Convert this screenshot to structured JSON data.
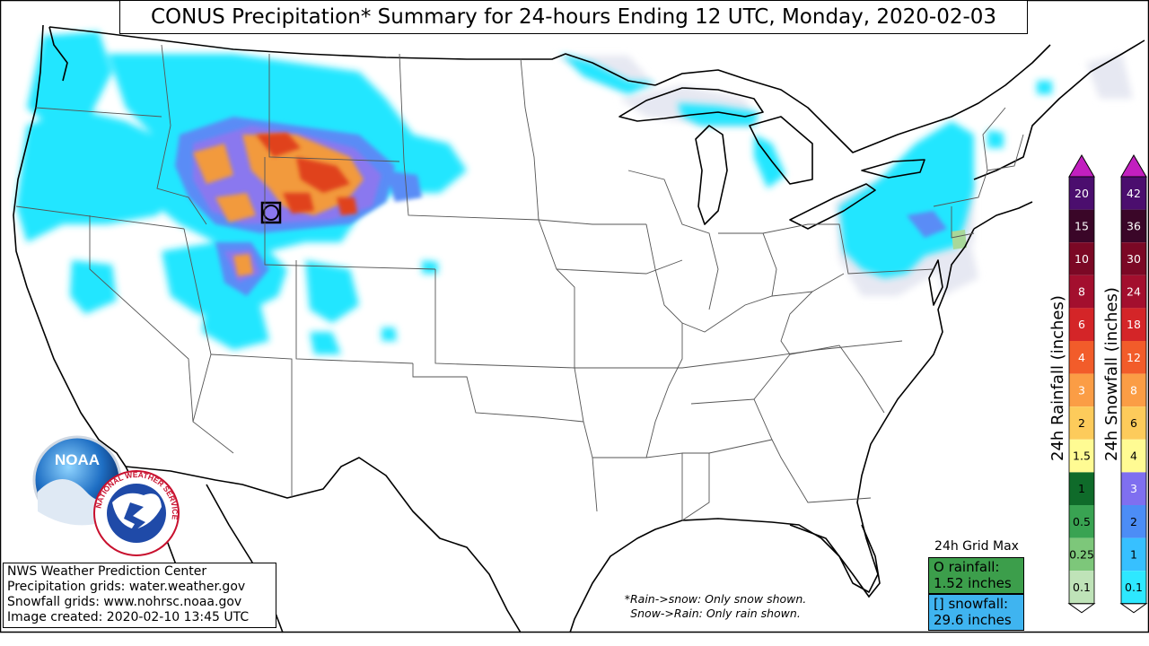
{
  "title": "CONUS Precipitation* Summary for 24-hours Ending 12 UTC, Monday, 2020-02-03",
  "credits": [
    "NWS Weather Prediction Center",
    "Precipitation grids: water.weather.gov",
    "Snowfall grids: www.nohrsc.noaa.gov",
    "Image created: 2020-02-10 13:45 UTC"
  ],
  "notes": [
    "*Rain->snow: Only snow shown.",
    "Snow->Rain: Only rain shown."
  ],
  "grid_max": {
    "title": "24h Grid Max",
    "rain_line1": "O rainfall:",
    "rain_line2": "1.52 inches",
    "snow_line1": "[] snowfall:",
    "snow_line2": "29.6 inches"
  },
  "rain_scale": {
    "label": "24h Rainfall (inches)",
    "values": [
      "20",
      "15",
      "10",
      "8",
      "6",
      "4",
      "3",
      "2",
      "1.5",
      "1",
      "0.5",
      "0.25",
      "0.1"
    ],
    "colors": [
      "#4b0e6e",
      "#3a0628",
      "#7b0825",
      "#a30f2e",
      "#d42528",
      "#f25c2a",
      "#fb9d45",
      "#fdcb5b",
      "#fffb93",
      "#0f6b2a",
      "#39a352",
      "#7dc77a",
      "#bfe3b8"
    ],
    "text_colors": [
      "#fff",
      "#fff",
      "#fff",
      "#fff",
      "#fff",
      "#fff",
      "#fff",
      "#000",
      "#000",
      "#000",
      "#000",
      "#000",
      "#000"
    ]
  },
  "snow_scale": {
    "label": "24h Snowfall (inches)",
    "values": [
      "42",
      "36",
      "30",
      "24",
      "18",
      "12",
      "8",
      "6",
      "4",
      "3",
      "2",
      "1",
      "0.1"
    ],
    "colors": [
      "#4b0e6e",
      "#3a0628",
      "#7b0825",
      "#a30f2e",
      "#d42528",
      "#f25c2a",
      "#fb9d45",
      "#fdcb5b",
      "#fffb93",
      "#7f6ff0",
      "#4c8df6",
      "#37c0ff",
      "#2ee8ff"
    ],
    "text_colors": [
      "#fff",
      "#fff",
      "#fff",
      "#fff",
      "#fff",
      "#fff",
      "#fff",
      "#000",
      "#000",
      "#fff",
      "#000",
      "#000",
      "#000"
    ]
  },
  "logos": {
    "noaa": "NOAA",
    "nws": "NATIONAL WEATHER SERVICE"
  },
  "colors": {
    "trace": "#e6e8f2",
    "light_snow": "#22e6ff",
    "snow_2": "#5a8cf6",
    "snow_3": "#8a78ef",
    "snow_6": "#f29a3c",
    "snow_12": "#e0421c",
    "rain_light": "#a8d89a"
  }
}
